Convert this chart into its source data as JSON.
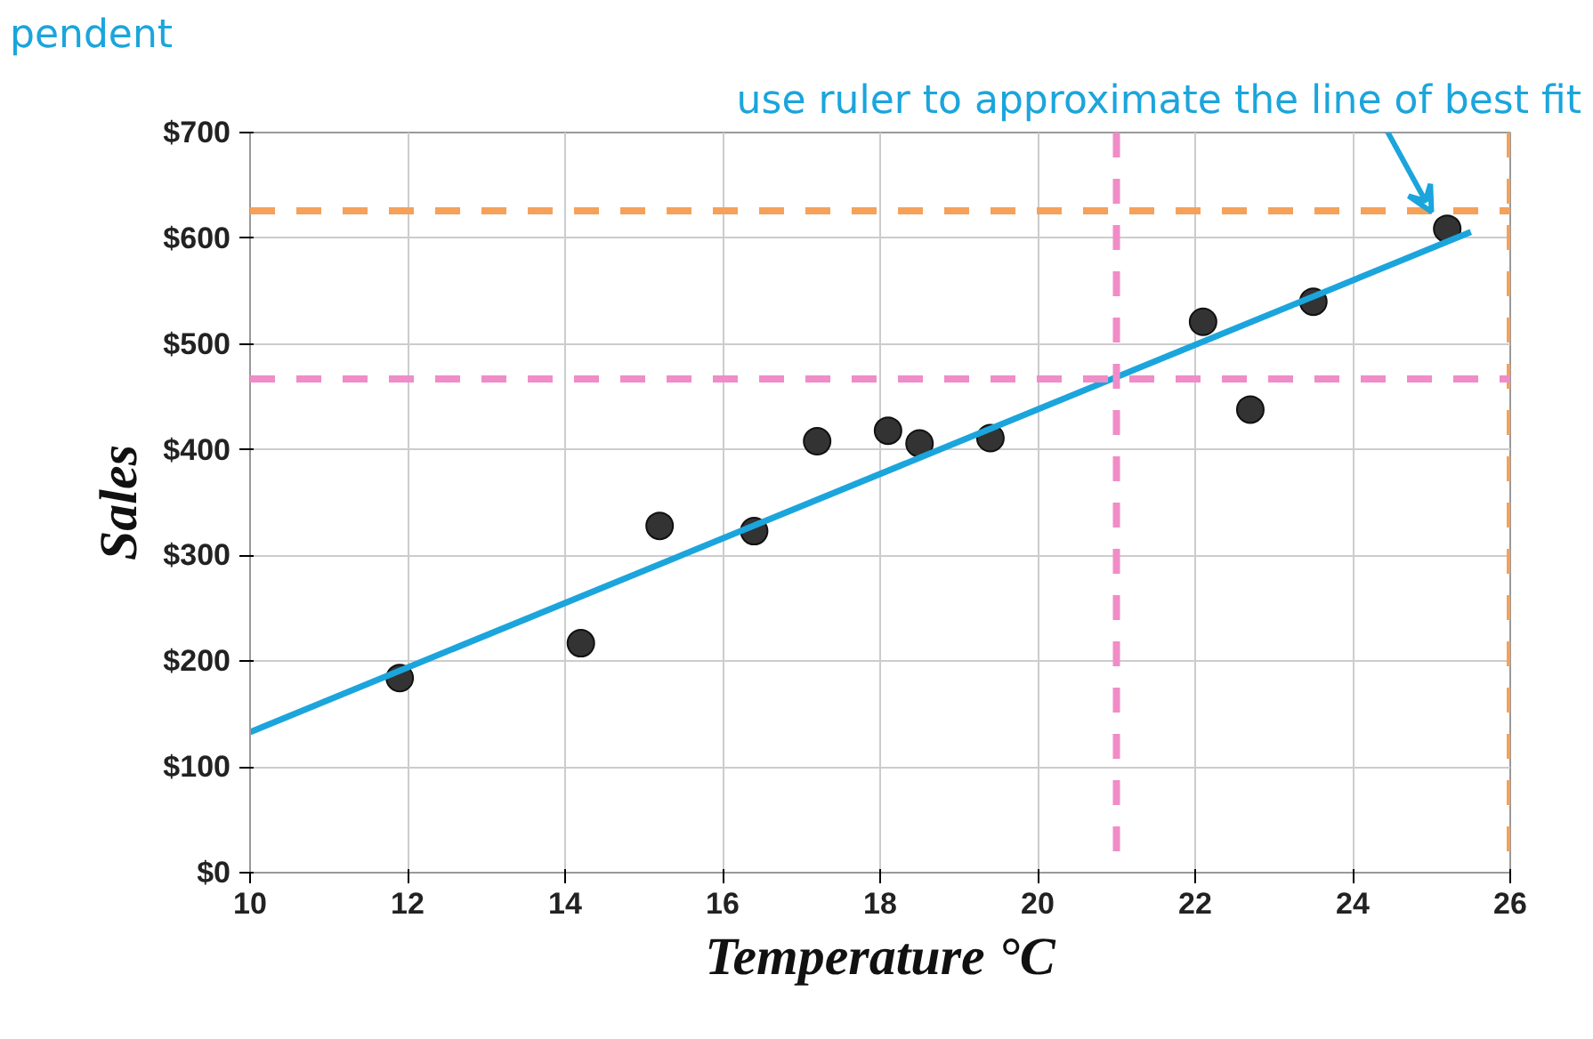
{
  "chart_data": {
    "type": "scatter",
    "xlabel": "Temperature °C",
    "ylabel": "Sales",
    "annotations": [
      {
        "text": "use ruler to approximate the line of best fit",
        "x": 25,
        "y": 625
      },
      "pendent"
    ],
    "x": [
      11.9,
      14.2,
      15.2,
      16.4,
      17.2,
      18.1,
      18.5,
      19.4,
      22.1,
      22.7,
      23.5,
      25.2
    ],
    "series": [
      {
        "color": "#333333",
        "marker": "circle",
        "values": [
          184,
          217,
          328,
          323,
          408,
          418,
          406,
          411,
          521,
          438,
          540,
          609
        ]
      },
      {
        "type": "line",
        "color": "#1ba5dc",
        "x": [
          10,
          25.5
        ],
        "values": [
          133,
          606
        ]
      }
    ],
    "xlim": [
      10,
      26
    ],
    "ylim": [
      0,
      700
    ],
    "xticks": [
      10,
      12,
      14,
      16,
      18,
      20,
      22,
      24,
      26
    ],
    "yticks": [
      {
        "value": 0,
        "label": "$0"
      },
      {
        "value": 100,
        "label": "$100"
      },
      {
        "value": 200,
        "label": "$200"
      },
      {
        "value": 300,
        "label": "$300"
      },
      {
        "value": 400,
        "label": "$400"
      },
      {
        "value": 500,
        "label": "$500"
      },
      {
        "value": 600,
        "label": "$600"
      },
      {
        "value": 700,
        "label": "$700"
      }
    ],
    "ref_lines": [
      {
        "axis": "y",
        "value": 626,
        "color": "#f5a15a",
        "line_style": "dashed"
      },
      {
        "axis": "x",
        "value": 26,
        "color": "#f5a15a",
        "line_style": "dashed"
      },
      {
        "axis": "y",
        "value": 467,
        "color": "#f08cc8",
        "line_style": "dashed"
      },
      {
        "axis": "x",
        "value": 21,
        "color": "#f08cc8",
        "line_style": "dashed"
      }
    ],
    "grid": true
  }
}
